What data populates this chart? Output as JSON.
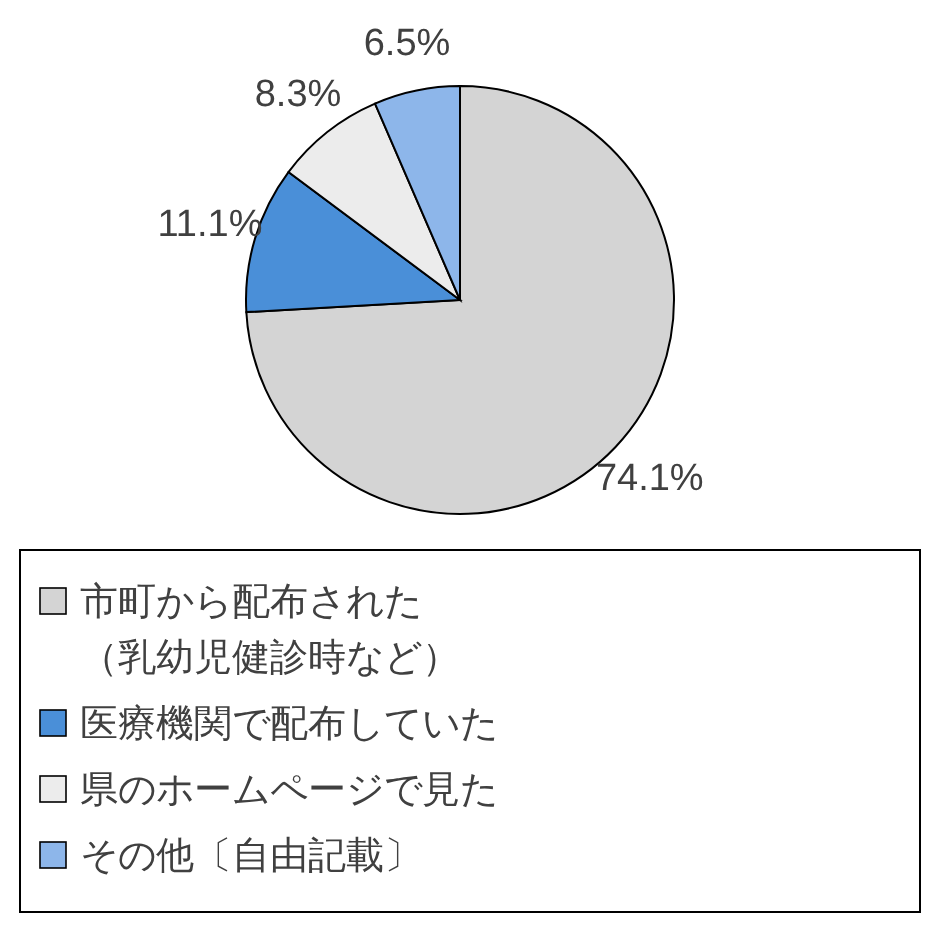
{
  "chart_data": {
    "type": "pie",
    "categories": [
      "市町から配布された（乳幼児健診時など）",
      "医療機関で配布していた",
      "県のホームページで見た",
      "その他〔自由記載〕"
    ],
    "values": [
      74.1,
      11.1,
      8.3,
      6.5
    ],
    "colors": [
      "#d4d4d4",
      "#4a8fd8",
      "#ececec",
      "#8db6ea"
    ],
    "value_labels": [
      "74.1%",
      "11.1%",
      "8.3%",
      "6.5%"
    ],
    "legend": "bottom"
  }
}
